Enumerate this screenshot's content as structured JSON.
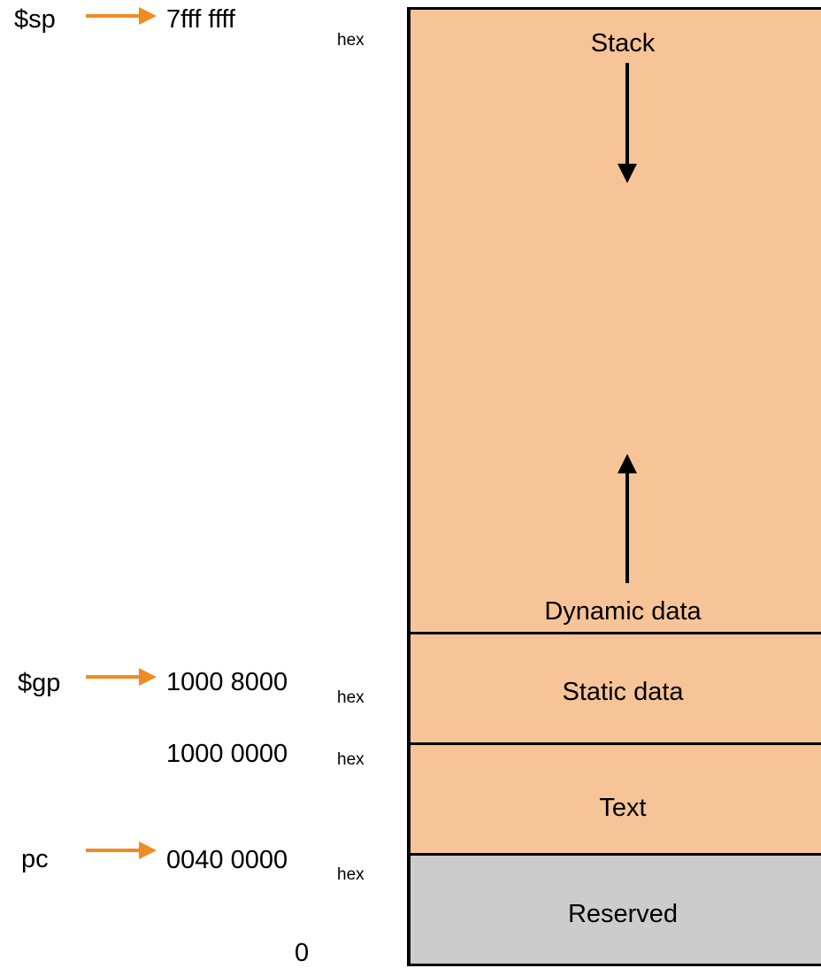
{
  "registers": {
    "sp": {
      "label": "$sp",
      "address": "7fff ffff",
      "suffix": "hex"
    },
    "gp": {
      "label": "$gp",
      "address": "1000 8000",
      "suffix": "hex"
    },
    "data_start": {
      "address": "1000 0000",
      "suffix": "hex"
    },
    "pc": {
      "label": "pc",
      "address": "0040 0000",
      "suffix": "hex"
    },
    "zero": {
      "address": "0"
    }
  },
  "segments": {
    "stack": "Stack",
    "dynamic": "Dynamic data",
    "static": "Static data",
    "text": "Text",
    "reserved": "Reserved"
  },
  "colors": {
    "segment_fill": "#f6c497",
    "reserved_fill": "#cccccc",
    "pointer_arrow": "#ee8b22",
    "outline": "#000000"
  },
  "icons": {
    "pointer": "right-arrow-icon",
    "stack_growth": "down-arrow-icon",
    "heap_growth": "up-arrow-icon"
  }
}
